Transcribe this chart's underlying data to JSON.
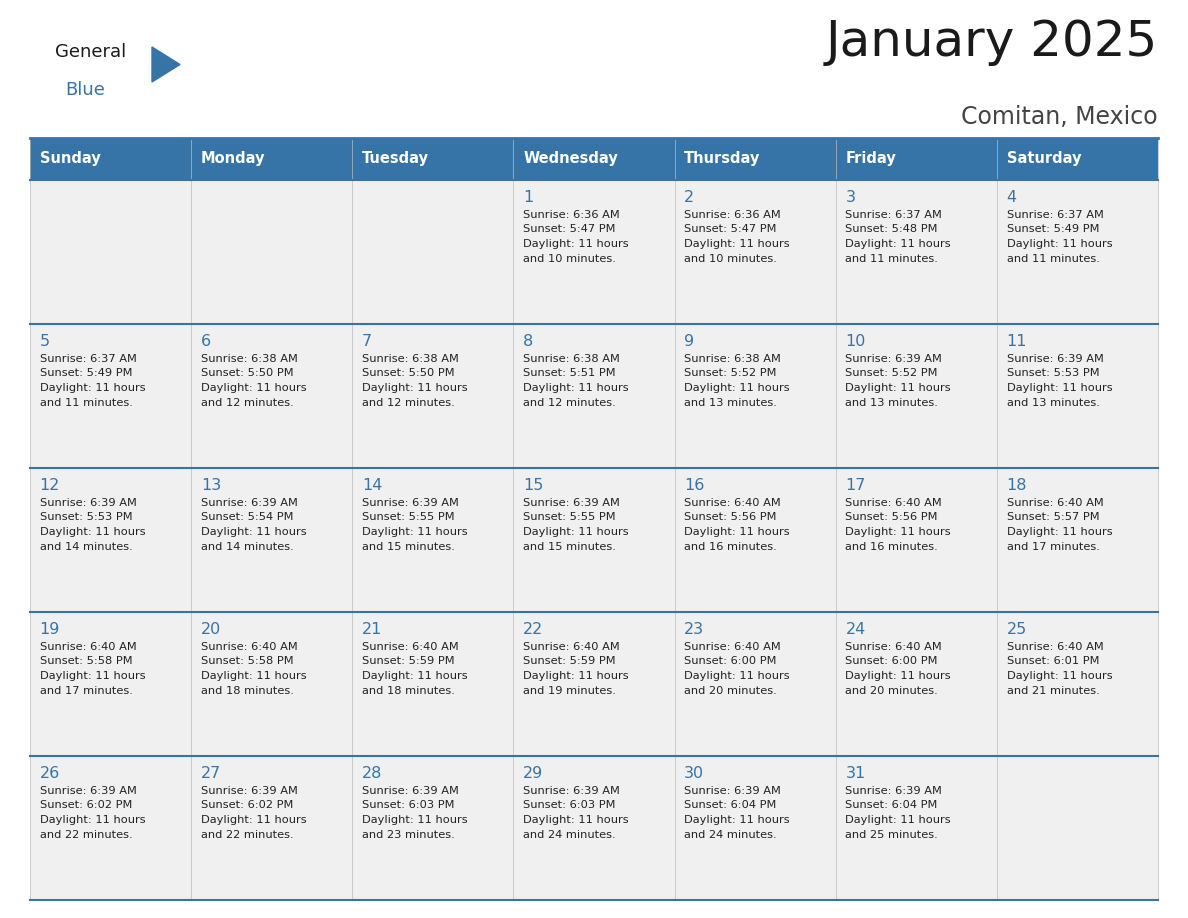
{
  "title": "January 2025",
  "subtitle": "Comitan, Mexico",
  "header_color": "#3674a8",
  "header_text_color": "#FFFFFF",
  "cell_bg_color": "#F0F0F0",
  "day_number_color": "#3674a8",
  "text_color": "#222222",
  "line_color": "#3674a8",
  "days_of_week": [
    "Sunday",
    "Monday",
    "Tuesday",
    "Wednesday",
    "Thursday",
    "Friday",
    "Saturday"
  ],
  "calendar_data": [
    [
      {
        "day": "",
        "sunrise": "",
        "sunset": "",
        "daylight_h": "",
        "daylight_m": ""
      },
      {
        "day": "",
        "sunrise": "",
        "sunset": "",
        "daylight_h": "",
        "daylight_m": ""
      },
      {
        "day": "",
        "sunrise": "",
        "sunset": "",
        "daylight_h": "",
        "daylight_m": ""
      },
      {
        "day": "1",
        "sunrise": "6:36 AM",
        "sunset": "5:47 PM",
        "daylight_h": "11 hours",
        "daylight_m": "and 10 minutes."
      },
      {
        "day": "2",
        "sunrise": "6:36 AM",
        "sunset": "5:47 PM",
        "daylight_h": "11 hours",
        "daylight_m": "and 10 minutes."
      },
      {
        "day": "3",
        "sunrise": "6:37 AM",
        "sunset": "5:48 PM",
        "daylight_h": "11 hours",
        "daylight_m": "and 11 minutes."
      },
      {
        "day": "4",
        "sunrise": "6:37 AM",
        "sunset": "5:49 PM",
        "daylight_h": "11 hours",
        "daylight_m": "and 11 minutes."
      }
    ],
    [
      {
        "day": "5",
        "sunrise": "6:37 AM",
        "sunset": "5:49 PM",
        "daylight_h": "11 hours",
        "daylight_m": "and 11 minutes."
      },
      {
        "day": "6",
        "sunrise": "6:38 AM",
        "sunset": "5:50 PM",
        "daylight_h": "11 hours",
        "daylight_m": "and 12 minutes."
      },
      {
        "day": "7",
        "sunrise": "6:38 AM",
        "sunset": "5:50 PM",
        "daylight_h": "11 hours",
        "daylight_m": "and 12 minutes."
      },
      {
        "day": "8",
        "sunrise": "6:38 AM",
        "sunset": "5:51 PM",
        "daylight_h": "11 hours",
        "daylight_m": "and 12 minutes."
      },
      {
        "day": "9",
        "sunrise": "6:38 AM",
        "sunset": "5:52 PM",
        "daylight_h": "11 hours",
        "daylight_m": "and 13 minutes."
      },
      {
        "day": "10",
        "sunrise": "6:39 AM",
        "sunset": "5:52 PM",
        "daylight_h": "11 hours",
        "daylight_m": "and 13 minutes."
      },
      {
        "day": "11",
        "sunrise": "6:39 AM",
        "sunset": "5:53 PM",
        "daylight_h": "11 hours",
        "daylight_m": "and 13 minutes."
      }
    ],
    [
      {
        "day": "12",
        "sunrise": "6:39 AM",
        "sunset": "5:53 PM",
        "daylight_h": "11 hours",
        "daylight_m": "and 14 minutes."
      },
      {
        "day": "13",
        "sunrise": "6:39 AM",
        "sunset": "5:54 PM",
        "daylight_h": "11 hours",
        "daylight_m": "and 14 minutes."
      },
      {
        "day": "14",
        "sunrise": "6:39 AM",
        "sunset": "5:55 PM",
        "daylight_h": "11 hours",
        "daylight_m": "and 15 minutes."
      },
      {
        "day": "15",
        "sunrise": "6:39 AM",
        "sunset": "5:55 PM",
        "daylight_h": "11 hours",
        "daylight_m": "and 15 minutes."
      },
      {
        "day": "16",
        "sunrise": "6:40 AM",
        "sunset": "5:56 PM",
        "daylight_h": "11 hours",
        "daylight_m": "and 16 minutes."
      },
      {
        "day": "17",
        "sunrise": "6:40 AM",
        "sunset": "5:56 PM",
        "daylight_h": "11 hours",
        "daylight_m": "and 16 minutes."
      },
      {
        "day": "18",
        "sunrise": "6:40 AM",
        "sunset": "5:57 PM",
        "daylight_h": "11 hours",
        "daylight_m": "and 17 minutes."
      }
    ],
    [
      {
        "day": "19",
        "sunrise": "6:40 AM",
        "sunset": "5:58 PM",
        "daylight_h": "11 hours",
        "daylight_m": "and 17 minutes."
      },
      {
        "day": "20",
        "sunrise": "6:40 AM",
        "sunset": "5:58 PM",
        "daylight_h": "11 hours",
        "daylight_m": "and 18 minutes."
      },
      {
        "day": "21",
        "sunrise": "6:40 AM",
        "sunset": "5:59 PM",
        "daylight_h": "11 hours",
        "daylight_m": "and 18 minutes."
      },
      {
        "day": "22",
        "sunrise": "6:40 AM",
        "sunset": "5:59 PM",
        "daylight_h": "11 hours",
        "daylight_m": "and 19 minutes."
      },
      {
        "day": "23",
        "sunrise": "6:40 AM",
        "sunset": "6:00 PM",
        "daylight_h": "11 hours",
        "daylight_m": "and 20 minutes."
      },
      {
        "day": "24",
        "sunrise": "6:40 AM",
        "sunset": "6:00 PM",
        "daylight_h": "11 hours",
        "daylight_m": "and 20 minutes."
      },
      {
        "day": "25",
        "sunrise": "6:40 AM",
        "sunset": "6:01 PM",
        "daylight_h": "11 hours",
        "daylight_m": "and 21 minutes."
      }
    ],
    [
      {
        "day": "26",
        "sunrise": "6:39 AM",
        "sunset": "6:02 PM",
        "daylight_h": "11 hours",
        "daylight_m": "and 22 minutes."
      },
      {
        "day": "27",
        "sunrise": "6:39 AM",
        "sunset": "6:02 PM",
        "daylight_h": "11 hours",
        "daylight_m": "and 22 minutes."
      },
      {
        "day": "28",
        "sunrise": "6:39 AM",
        "sunset": "6:03 PM",
        "daylight_h": "11 hours",
        "daylight_m": "and 23 minutes."
      },
      {
        "day": "29",
        "sunrise": "6:39 AM",
        "sunset": "6:03 PM",
        "daylight_h": "11 hours",
        "daylight_m": "and 24 minutes."
      },
      {
        "day": "30",
        "sunrise": "6:39 AM",
        "sunset": "6:04 PM",
        "daylight_h": "11 hours",
        "daylight_m": "and 24 minutes."
      },
      {
        "day": "31",
        "sunrise": "6:39 AM",
        "sunset": "6:04 PM",
        "daylight_h": "11 hours",
        "daylight_m": "and 25 minutes."
      },
      {
        "day": "",
        "sunrise": "",
        "sunset": "",
        "daylight_h": "",
        "daylight_m": ""
      }
    ]
  ]
}
